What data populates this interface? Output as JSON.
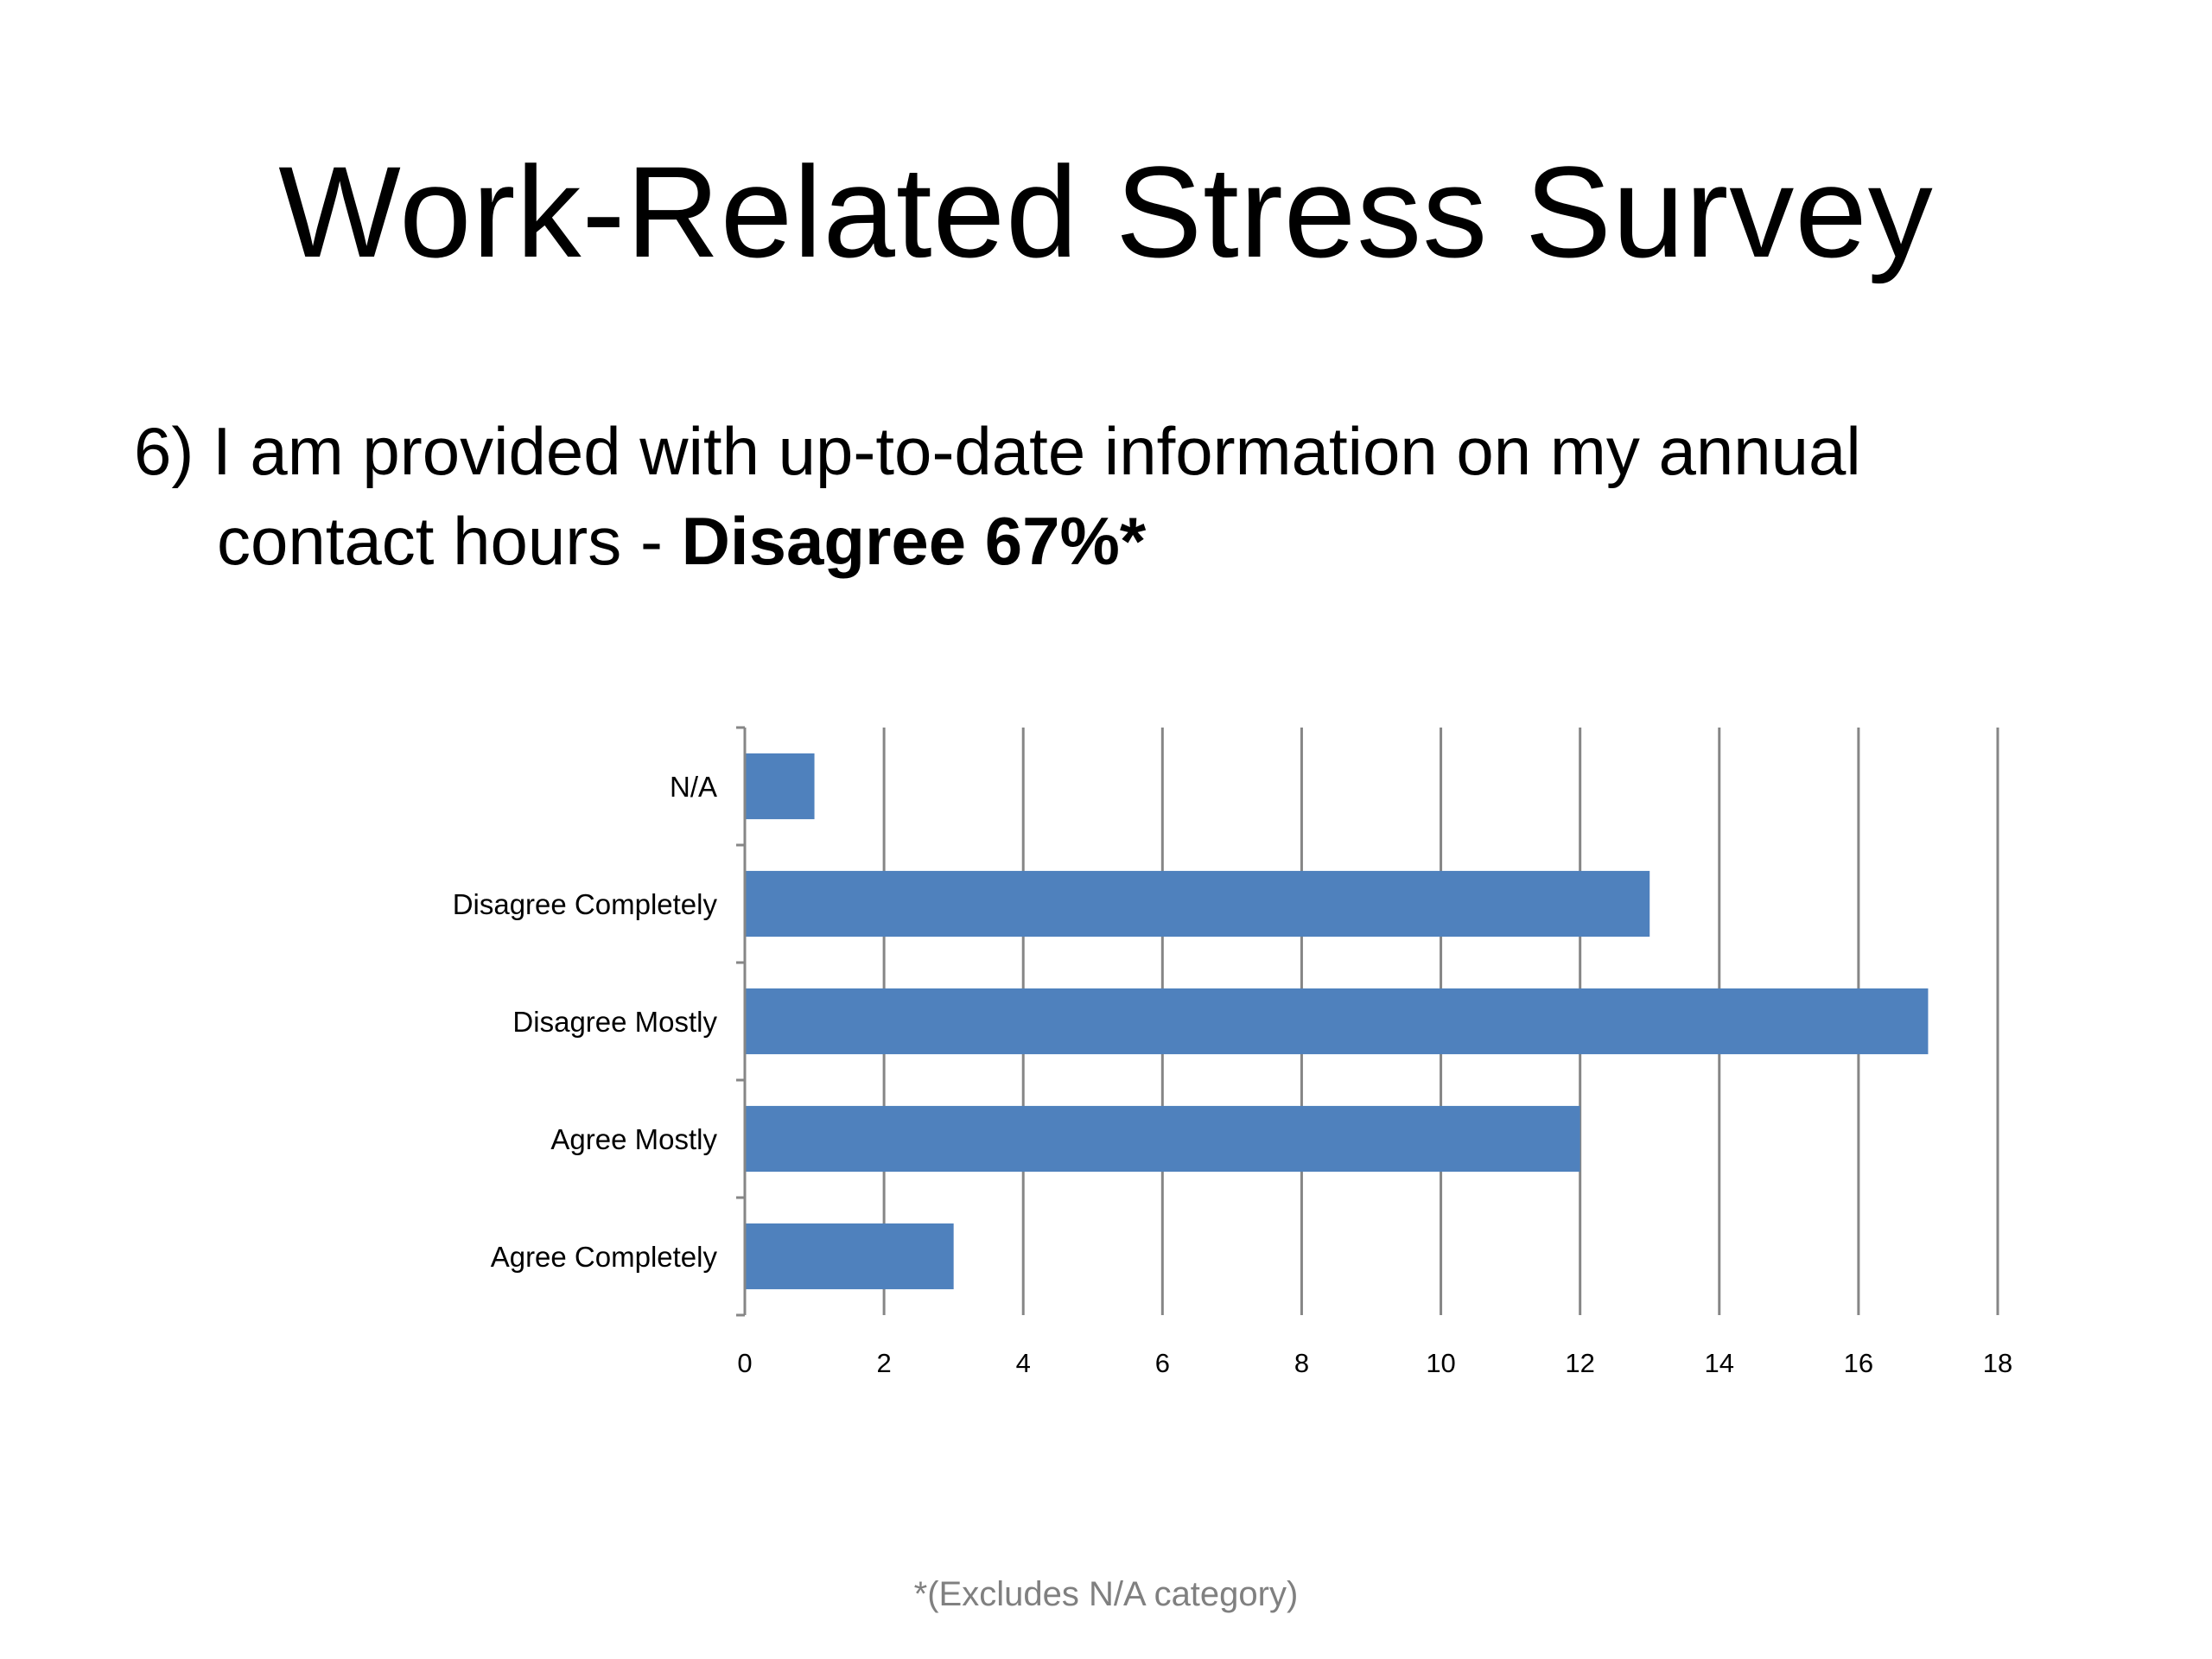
{
  "slide": {
    "title": "Work-Related Stress Survey",
    "question_number": "6)",
    "question_line1": "I am provided with up-to-date information on my annual",
    "question_line2": "contact hours - ",
    "question_emphasis": "Disagree 67%*",
    "footnote": "*(Excludes N/A category)"
  },
  "colors": {
    "bar": "#4F81BD",
    "gridline": "#868686",
    "text": "#000000",
    "footnote": "#808080"
  },
  "chart_data": {
    "type": "bar",
    "orientation": "horizontal",
    "categories": [
      "N/A",
      "Disagree Completely",
      "Disagree Mostly",
      "Agree Mostly",
      "Agree Completely"
    ],
    "values": [
      1,
      13,
      17,
      12,
      3
    ],
    "xlim": [
      0,
      18
    ],
    "xticks": [
      0,
      2,
      4,
      6,
      8,
      10,
      12,
      14,
      16,
      18
    ],
    "grid": true,
    "legend": "none"
  }
}
